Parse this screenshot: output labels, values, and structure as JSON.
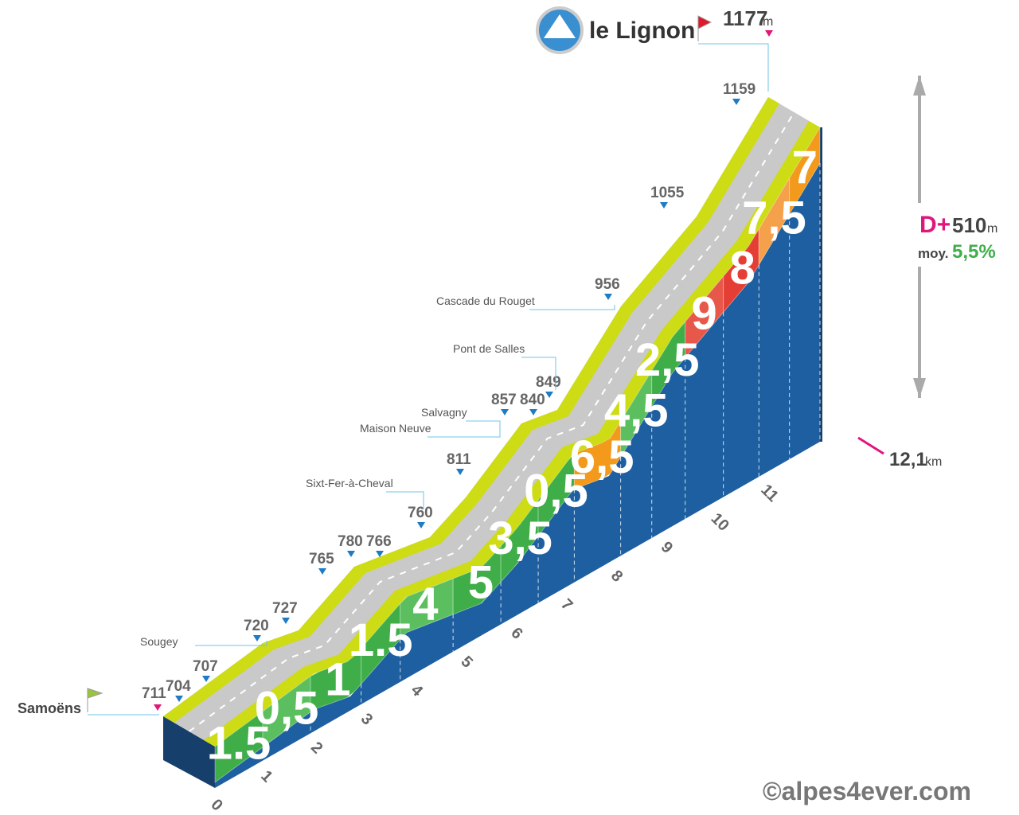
{
  "header": {
    "summit": "le Lignon",
    "altitude": "1177",
    "unit": "m"
  },
  "start": {
    "name": "Samoëns",
    "altitude": "711"
  },
  "altitudes": [
    "704",
    "707",
    "720",
    "727",
    "765",
    "780",
    "766",
    "760",
    "811",
    "857",
    "840",
    "849",
    "956",
    "1055",
    "1159"
  ],
  "places": [
    "Sougey",
    "Sixt-Fer-à-Cheval",
    "Maison Neuve",
    "Salvagny",
    "Pont de Salles",
    "Cascade du Rouget"
  ],
  "gradients": [
    {
      "label": "1.5",
      "color": "#3fae49"
    },
    {
      "label": "0,5",
      "color": "#5cbf5f"
    },
    {
      "label": "1",
      "color": "#3fae49"
    },
    {
      "label": "1.5",
      "color": "#3fae49"
    },
    {
      "label": "4",
      "color": "#5cbf5f"
    },
    {
      "label": "5",
      "color": "#3fae49"
    },
    {
      "label": "3,5",
      "color": "#3fae49"
    },
    {
      "label": "0,5",
      "color": "#3fae49"
    },
    {
      "label": "6,5",
      "color": "#f39a1c"
    },
    {
      "label": "4,5",
      "color": "#5cbf5f"
    },
    {
      "label": "2,5",
      "color": "#3fae49"
    },
    {
      "label": "9",
      "color": "#e8584a"
    },
    {
      "label": "8",
      "color": "#e53f35"
    },
    {
      "label": "7,5",
      "color": "#f5a04a"
    },
    {
      "label": "7",
      "color": "#f39a1c"
    }
  ],
  "km_ticks": [
    "0",
    "1",
    "2",
    "3",
    "4",
    "5",
    "6",
    "7",
    "8",
    "9",
    "10",
    "11"
  ],
  "stats": {
    "gain_label": "D+",
    "gain": "510",
    "gain_unit": "m",
    "avg_label": "moy.",
    "avg": "5,5%",
    "distance": "12,1",
    "distance_unit": "km"
  },
  "footer": "©alpes4ever.com"
}
